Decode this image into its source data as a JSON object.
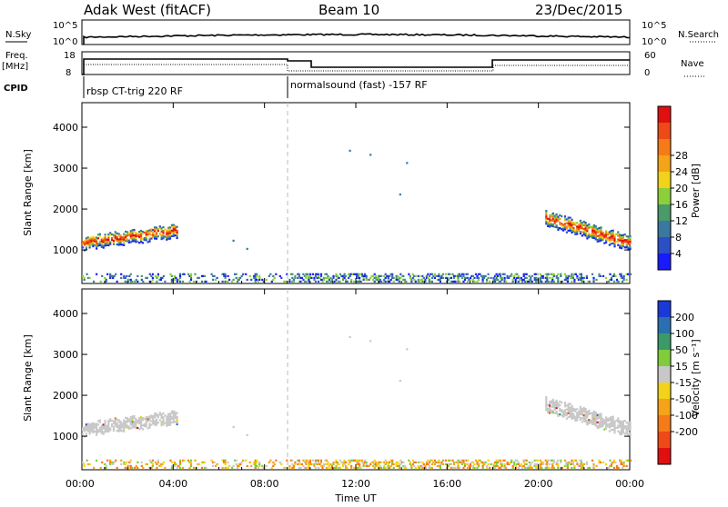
{
  "header": {
    "station": "Adak West (fitACF)",
    "beam": "Beam 10",
    "date": "23/Dec/2015"
  },
  "side_labels": {
    "nsky": "N.Sky",
    "nsky_top": "10^5",
    "nsky_bottom": "10^0",
    "nsearch": "N.Search",
    "nsearch_top": "10^5",
    "nsearch_bottom": "10^0",
    "freq": "Freq.",
    "freq_unit": "[MHz]",
    "freq_top": "18",
    "freq_bottom": "8",
    "nave": "Nave",
    "nave_top": "60",
    "nave_bottom": "0",
    "cpid": "CPID"
  },
  "cpid_segments": [
    {
      "label": "rbsp CT-trig 220 RF",
      "start_hour": 0
    },
    {
      "label": "normalsound (fast) -157 RF",
      "start_hour": 9
    }
  ],
  "colors": {
    "line": "#000000",
    "dash": "#bbbbbb",
    "ground_gray": "#c8c8c8"
  },
  "chart_data": [
    {
      "type": "heatmap",
      "name": "power",
      "ylabel": "Slant Range [km]",
      "xlabel": "Time UT",
      "x_tick_labels": [
        "00:00",
        "04:00",
        "08:00",
        "12:00",
        "16:00",
        "20:00",
        "00:00"
      ],
      "x_ticks_hours": [
        0,
        4,
        8,
        12,
        16,
        20,
        24
      ],
      "y_ticks": [
        1000,
        2000,
        3000,
        4000
      ],
      "ylim": [
        180,
        4600
      ],
      "colorbar": {
        "label": "Power [dB]",
        "ticks": [
          "4",
          "8",
          "12",
          "16",
          "20",
          "24",
          "28"
        ],
        "colors": [
          "#1a1aff",
          "#2b4fc4",
          "#3b78a0",
          "#4a9a6a",
          "#8ccf3a",
          "#f2d21a",
          "#f5a318",
          "#f57a18",
          "#ee4a17",
          "#e01010"
        ]
      },
      "echo_bands": [
        {
          "t_start": 0.0,
          "t_end": 4.2,
          "center_start": 1200,
          "center_end": 1500,
          "halfwidth": 150
        },
        {
          "t_start": 20.3,
          "t_end": 24.0,
          "center_start": 1800,
          "center_end": 1200,
          "halfwidth": 170
        }
      ],
      "isolated_points": [
        {
          "t": 11.7,
          "r": 3450
        },
        {
          "t": 12.6,
          "r": 3350
        },
        {
          "t": 14.2,
          "r": 3150
        },
        {
          "t": 13.9,
          "r": 2380
        },
        {
          "t": 6.6,
          "r": 1250
        },
        {
          "t": 7.2,
          "r": 1050
        }
      ],
      "ground_scatter": {
        "t_start": 0.0,
        "t_end": 24.0,
        "r_low": 250,
        "r_high": 450
      }
    },
    {
      "type": "heatmap",
      "name": "velocity",
      "ylabel": "Slant Range [km]",
      "xlabel": "Time UT",
      "x_tick_labels": [
        "00:00",
        "04:00",
        "08:00",
        "12:00",
        "16:00",
        "20:00",
        "00:00"
      ],
      "x_ticks_hours": [
        0,
        4,
        8,
        12,
        16,
        20,
        24
      ],
      "y_ticks": [
        1000,
        2000,
        3000,
        4000
      ],
      "ylim": [
        180,
        4600
      ],
      "colorbar": {
        "label": "Velocity [m s⁻¹]",
        "ticks": [
          "200",
          "100",
          "50",
          "15",
          "-15",
          "-50",
          "-100",
          "-200"
        ],
        "colors": [
          "#1a3ad8",
          "#2a6fb0",
          "#3a9a6a",
          "#80cc3a",
          "#c8c8c8",
          "#f2d21a",
          "#f5a318",
          "#f57a18",
          "#ee4a17",
          "#e01010"
        ]
      }
    }
  ]
}
